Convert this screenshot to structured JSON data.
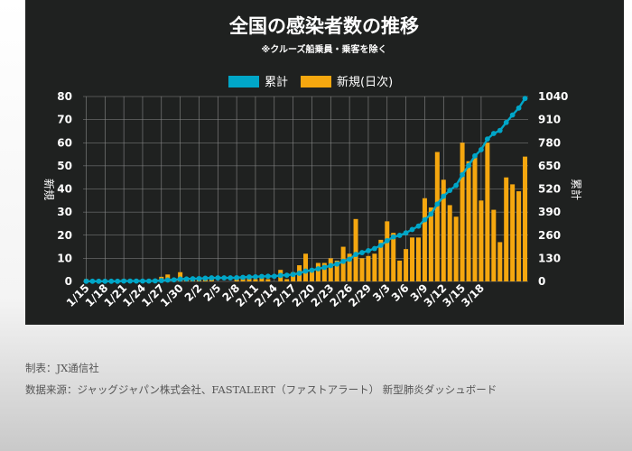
{
  "chart_data": {
    "type": "bar+line",
    "title": "全国の感染者数の推移",
    "subtitle": "※クルーズ船乗員・乗客を除く",
    "legend": [
      "累計",
      "新規(日次)"
    ],
    "legend_position": "top-center",
    "left_axis": {
      "label": "新規",
      "ticks": [
        "0",
        "10",
        "20",
        "30",
        "40",
        "50",
        "60",
        "70",
        "80"
      ],
      "range": [
        0,
        80
      ]
    },
    "right_axis": {
      "label": "累計",
      "ticks": [
        "0",
        "130",
        "260",
        "390",
        "520",
        "650",
        "780",
        "910",
        "1040"
      ],
      "range": [
        0,
        1040
      ]
    },
    "x_tick_labels": [
      "1/15",
      "1/18",
      "1/21",
      "1/24",
      "1/27",
      "1/30",
      "2/2",
      "2/5",
      "2/8",
      "2/11",
      "2/14",
      "2/17",
      "2/20",
      "2/23",
      "2/26",
      "2/29",
      "3/3",
      "3/6",
      "3/9",
      "3/12",
      "3/15",
      "3/18"
    ],
    "grid": true,
    "series": [
      {
        "name": "新規(日次)",
        "type": "bar",
        "axis": "left",
        "color": "#f5a70f",
        "values": [
          1,
          0,
          0,
          0,
          0,
          0,
          1,
          0,
          0,
          0,
          0,
          1,
          2,
          3,
          1,
          4,
          1,
          1,
          1,
          2,
          2,
          0,
          0,
          0,
          1,
          2,
          2,
          1,
          2,
          1,
          0,
          5,
          1,
          4,
          7,
          12,
          5,
          8,
          8,
          10,
          9,
          15,
          12,
          27,
          10,
          11,
          12,
          18,
          26,
          21,
          9,
          14,
          19,
          19,
          36,
          32,
          56,
          44,
          33,
          28,
          60,
          52,
          54,
          35,
          60,
          31,
          17,
          45,
          42,
          39,
          54
        ]
      },
      {
        "name": "累計",
        "type": "line",
        "axis": "right",
        "color": "#00a6c8",
        "values": [
          1,
          1,
          1,
          1,
          1,
          1,
          2,
          2,
          2,
          2,
          2,
          3,
          5,
          8,
          9,
          13,
          14,
          15,
          16,
          18,
          20,
          20,
          20,
          20,
          21,
          23,
          25,
          26,
          28,
          29,
          29,
          34,
          35,
          39,
          46,
          58,
          63,
          71,
          79,
          89,
          98,
          113,
          125,
          152,
          162,
          173,
          185,
          203,
          229,
          250,
          259,
          273,
          292,
          311,
          347,
          379,
          435,
          479,
          512,
          540,
          600,
          652,
          706,
          741,
          801,
          832,
          849,
          894,
          936,
          975,
          1029
        ]
      }
    ]
  },
  "footer": {
    "made_by": "制表：JX通信社",
    "source": "数据来源：ジャッグジャパン株式会社、FASTALERT（ファストアラート） 新型肺炎ダッシュボード"
  }
}
